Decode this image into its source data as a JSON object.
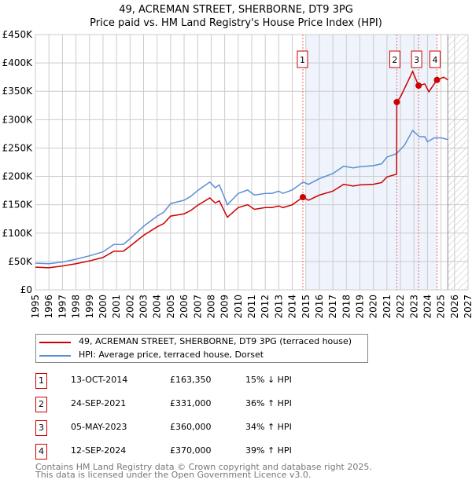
{
  "chart_data": {
    "type": "line",
    "title": "49, ACREMAN STREET, SHERBORNE, DT9 3PG",
    "subtitle": "Price paid vs. HM Land Registry's House Price Index (HPI)",
    "xlim": [
      1995,
      2027
    ],
    "ylim": [
      0,
      450000
    ],
    "yticks": [
      "£0",
      "£50K",
      "£100K",
      "£150K",
      "£200K",
      "£250K",
      "£300K",
      "£350K",
      "£400K",
      "£450K"
    ],
    "xticks": [
      "1995",
      "1996",
      "1997",
      "1998",
      "1999",
      "2000",
      "2001",
      "2002",
      "2003",
      "2004",
      "2005",
      "2006",
      "2007",
      "2008",
      "2009",
      "2010",
      "2011",
      "2012",
      "2013",
      "2014",
      "2015",
      "2016",
      "2017",
      "2018",
      "2019",
      "2020",
      "2021",
      "2022",
      "2023",
      "2024",
      "2025",
      "2026",
      "2027"
    ],
    "grid": true,
    "series": [
      {
        "name": "49, ACREMAN STREET, SHERBORNE, DT9 3PG (terraced house)",
        "color": "#cc0000",
        "points": [
          [
            1995,
            40
          ],
          [
            1996,
            39
          ],
          [
            1997,
            42
          ],
          [
            1998,
            46
          ],
          [
            1999,
            51
          ],
          [
            2000,
            57
          ],
          [
            2000.8,
            68
          ],
          [
            2001.5,
            68
          ],
          [
            2002,
            77
          ],
          [
            2003,
            96
          ],
          [
            2004,
            111
          ],
          [
            2004.5,
            117
          ],
          [
            2005,
            130
          ],
          [
            2006,
            134
          ],
          [
            2006.5,
            140
          ],
          [
            2007,
            149
          ],
          [
            2007.9,
            162
          ],
          [
            2008.3,
            153
          ],
          [
            2008.6,
            157
          ],
          [
            2009.2,
            128
          ],
          [
            2010,
            145
          ],
          [
            2010.7,
            150
          ],
          [
            2011.2,
            142
          ],
          [
            2012,
            145
          ],
          [
            2012.5,
            145
          ],
          [
            2013,
            148
          ],
          [
            2013.3,
            145
          ],
          [
            2014,
            150
          ],
          [
            2014.78,
            163.35
          ],
          [
            2015.2,
            158
          ],
          [
            2016,
            167
          ],
          [
            2017,
            174
          ],
          [
            2017.8,
            186
          ],
          [
            2018.5,
            183
          ],
          [
            2019,
            185
          ],
          [
            2020,
            186
          ],
          [
            2020.6,
            189
          ],
          [
            2021,
            199
          ],
          [
            2021.72,
            204
          ],
          [
            2021.73,
            331
          ],
          [
            2022,
            340
          ],
          [
            2022.9,
            385
          ],
          [
            2023.34,
            360
          ],
          [
            2023.8,
            363
          ],
          [
            2024.1,
            349
          ],
          [
            2024.7,
            370
          ],
          [
            2025.2,
            375
          ],
          [
            2025.5,
            370
          ]
        ]
      },
      {
        "name": "HPI: Average price, terraced house, Dorset",
        "color": "#5b8fd4",
        "points": [
          [
            1995,
            47
          ],
          [
            1996,
            46
          ],
          [
            1997,
            49
          ],
          [
            1998,
            54
          ],
          [
            1999,
            60
          ],
          [
            2000,
            67
          ],
          [
            2000.8,
            80
          ],
          [
            2001.5,
            80
          ],
          [
            2002,
            90
          ],
          [
            2003,
            112
          ],
          [
            2004,
            130
          ],
          [
            2004.5,
            137
          ],
          [
            2005,
            152
          ],
          [
            2006,
            158
          ],
          [
            2006.5,
            165
          ],
          [
            2007,
            175
          ],
          [
            2007.9,
            190
          ],
          [
            2008.3,
            180
          ],
          [
            2008.6,
            185
          ],
          [
            2009.2,
            150
          ],
          [
            2010,
            170
          ],
          [
            2010.7,
            176
          ],
          [
            2011.2,
            167
          ],
          [
            2012,
            170
          ],
          [
            2012.5,
            170
          ],
          [
            2013,
            174
          ],
          [
            2013.3,
            170
          ],
          [
            2014,
            176
          ],
          [
            2014.8,
            190
          ],
          [
            2015.2,
            186
          ],
          [
            2016,
            196
          ],
          [
            2017,
            205
          ],
          [
            2017.8,
            218
          ],
          [
            2018.5,
            215
          ],
          [
            2019,
            217
          ],
          [
            2020,
            219
          ],
          [
            2020.6,
            222
          ],
          [
            2021,
            234
          ],
          [
            2021.7,
            240
          ],
          [
            2022.3,
            255
          ],
          [
            2022.9,
            281
          ],
          [
            2023.4,
            270
          ],
          [
            2023.8,
            270
          ],
          [
            2024,
            261
          ],
          [
            2024.5,
            268
          ],
          [
            2025,
            268
          ],
          [
            2025.5,
            265
          ]
        ]
      }
    ],
    "value_unit": "£K",
    "shaded_range": [
      2015,
      2024.7
    ],
    "forecast_from": 2025.5,
    "sales": [
      {
        "n": "1",
        "x": 2014.78,
        "y": 163.35,
        "date": "13-OCT-2014",
        "price": "£163,350",
        "hpi": "15% ↓ HPI"
      },
      {
        "n": "2",
        "x": 2021.73,
        "y": 331,
        "date": "24-SEP-2021",
        "price": "£331,000",
        "hpi": "36% ↑ HPI"
      },
      {
        "n": "3",
        "x": 2023.34,
        "y": 360,
        "date": "05-MAY-2023",
        "price": "£360,000",
        "hpi": "34% ↑ HPI"
      },
      {
        "n": "4",
        "x": 2024.7,
        "y": 370,
        "date": "12-SEP-2024",
        "price": "£370,000",
        "hpi": "39% ↑ HPI"
      }
    ]
  },
  "footer": {
    "line1": "Contains HM Land Registry data © Crown copyright and database right 2025.",
    "line2": "This data is licensed under the Open Government Licence v3.0."
  }
}
